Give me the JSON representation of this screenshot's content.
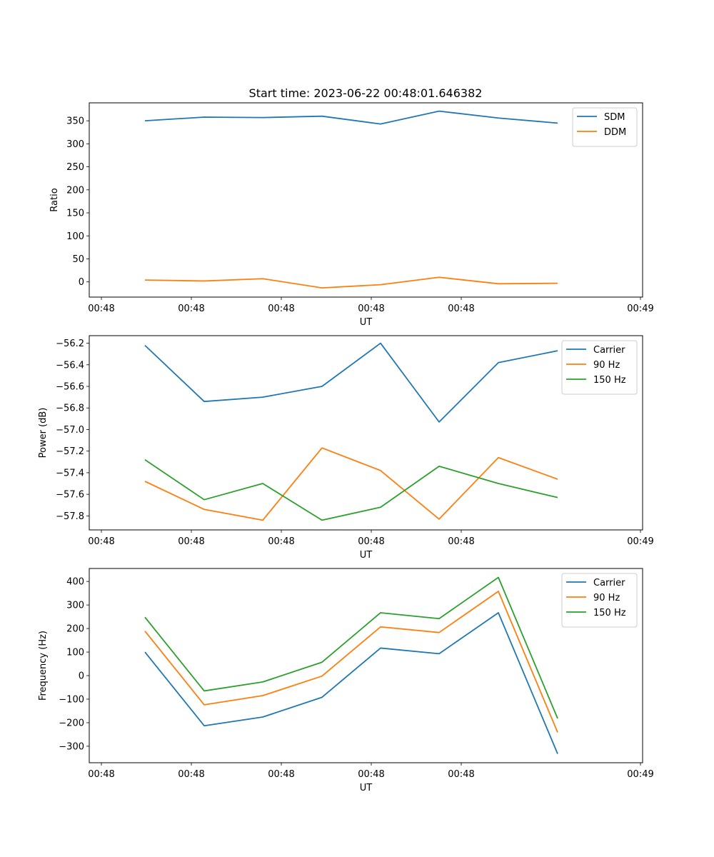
{
  "figure": {
    "title": "Start time: 2023-06-22 00:48:01.646382"
  },
  "colors": {
    "blue": "#1f77b4",
    "orange": "#ff7f0e",
    "green": "#2ca02c"
  },
  "chart_data": [
    {
      "type": "line",
      "title": "Start time: 2023-06-22 00:48:01.646382",
      "xlabel": "UT",
      "ylabel": "Ratio",
      "x_tick_labels": [
        "00:48",
        "00:48",
        "00:48",
        "00:48",
        "00:48",
        "00:49"
      ],
      "y_ticks": [
        0,
        50,
        100,
        150,
        200,
        250,
        300,
        350
      ],
      "ylim": [
        -33,
        389
      ],
      "legend": "top-right",
      "grid": false,
      "series": [
        {
          "name": "SDM",
          "color": "#1f77b4",
          "values": [
            350,
            358,
            357,
            360,
            343,
            371,
            356,
            345
          ]
        },
        {
          "name": "DDM",
          "color": "#ff7f0e",
          "values": [
            4,
            2,
            7,
            -13,
            -6,
            10,
            -4,
            -3
          ]
        }
      ]
    },
    {
      "type": "line",
      "title": "",
      "xlabel": "UT",
      "ylabel": "Power (dB)",
      "x_tick_labels": [
        "00:48",
        "00:48",
        "00:48",
        "00:48",
        "00:48",
        "00:49"
      ],
      "y_ticks": [
        -56.2,
        -56.4,
        -56.6,
        -56.8,
        -57.0,
        -57.2,
        -57.4,
        -57.6,
        -57.8
      ],
      "y_tick_labels": [
        "−56.2",
        "−56.4",
        "−56.6",
        "−56.8",
        "−57.0",
        "−57.2",
        "−57.4",
        "−57.6",
        "−57.8"
      ],
      "ylim": [
        -57.93,
        -56.13
      ],
      "legend": "top-right",
      "grid": false,
      "series": [
        {
          "name": "Carrier",
          "color": "#1f77b4",
          "values": [
            -56.22,
            -56.74,
            -56.7,
            -56.6,
            -56.2,
            -56.93,
            -56.38,
            -56.27
          ]
        },
        {
          "name": "90 Hz",
          "color": "#ff7f0e",
          "values": [
            -57.48,
            -57.74,
            -57.84,
            -57.17,
            -57.38,
            -57.83,
            -57.26,
            -57.46
          ]
        },
        {
          "name": "150 Hz",
          "color": "#2ca02c",
          "values": [
            -57.28,
            -57.65,
            -57.5,
            -57.84,
            -57.72,
            -57.34,
            -57.5,
            -57.63
          ]
        }
      ]
    },
    {
      "type": "line",
      "title": "",
      "xlabel": "UT",
      "ylabel": "Frequency (Hz)",
      "x_tick_labels": [
        "00:48",
        "00:48",
        "00:48",
        "00:48",
        "00:48",
        "00:49"
      ],
      "y_ticks": [
        400,
        300,
        200,
        100,
        0,
        -100,
        -200,
        -300
      ],
      "y_tick_labels": [
        "400",
        "300",
        "200",
        "100",
        "0",
        "−100",
        "−200",
        "−300"
      ],
      "ylim": [
        -370,
        455
      ],
      "legend": "top-right",
      "grid": false,
      "series": [
        {
          "name": "Carrier",
          "color": "#1f77b4",
          "values": [
            100,
            -213,
            -176,
            -92,
            117,
            93,
            267,
            -332
          ]
        },
        {
          "name": "90 Hz",
          "color": "#ff7f0e",
          "values": [
            189,
            -124,
            -85,
            -2,
            207,
            183,
            358,
            -241
          ]
        },
        {
          "name": "150 Hz",
          "color": "#2ca02c",
          "values": [
            248,
            -65,
            -27,
            57,
            267,
            242,
            417,
            -182
          ]
        }
      ]
    }
  ]
}
